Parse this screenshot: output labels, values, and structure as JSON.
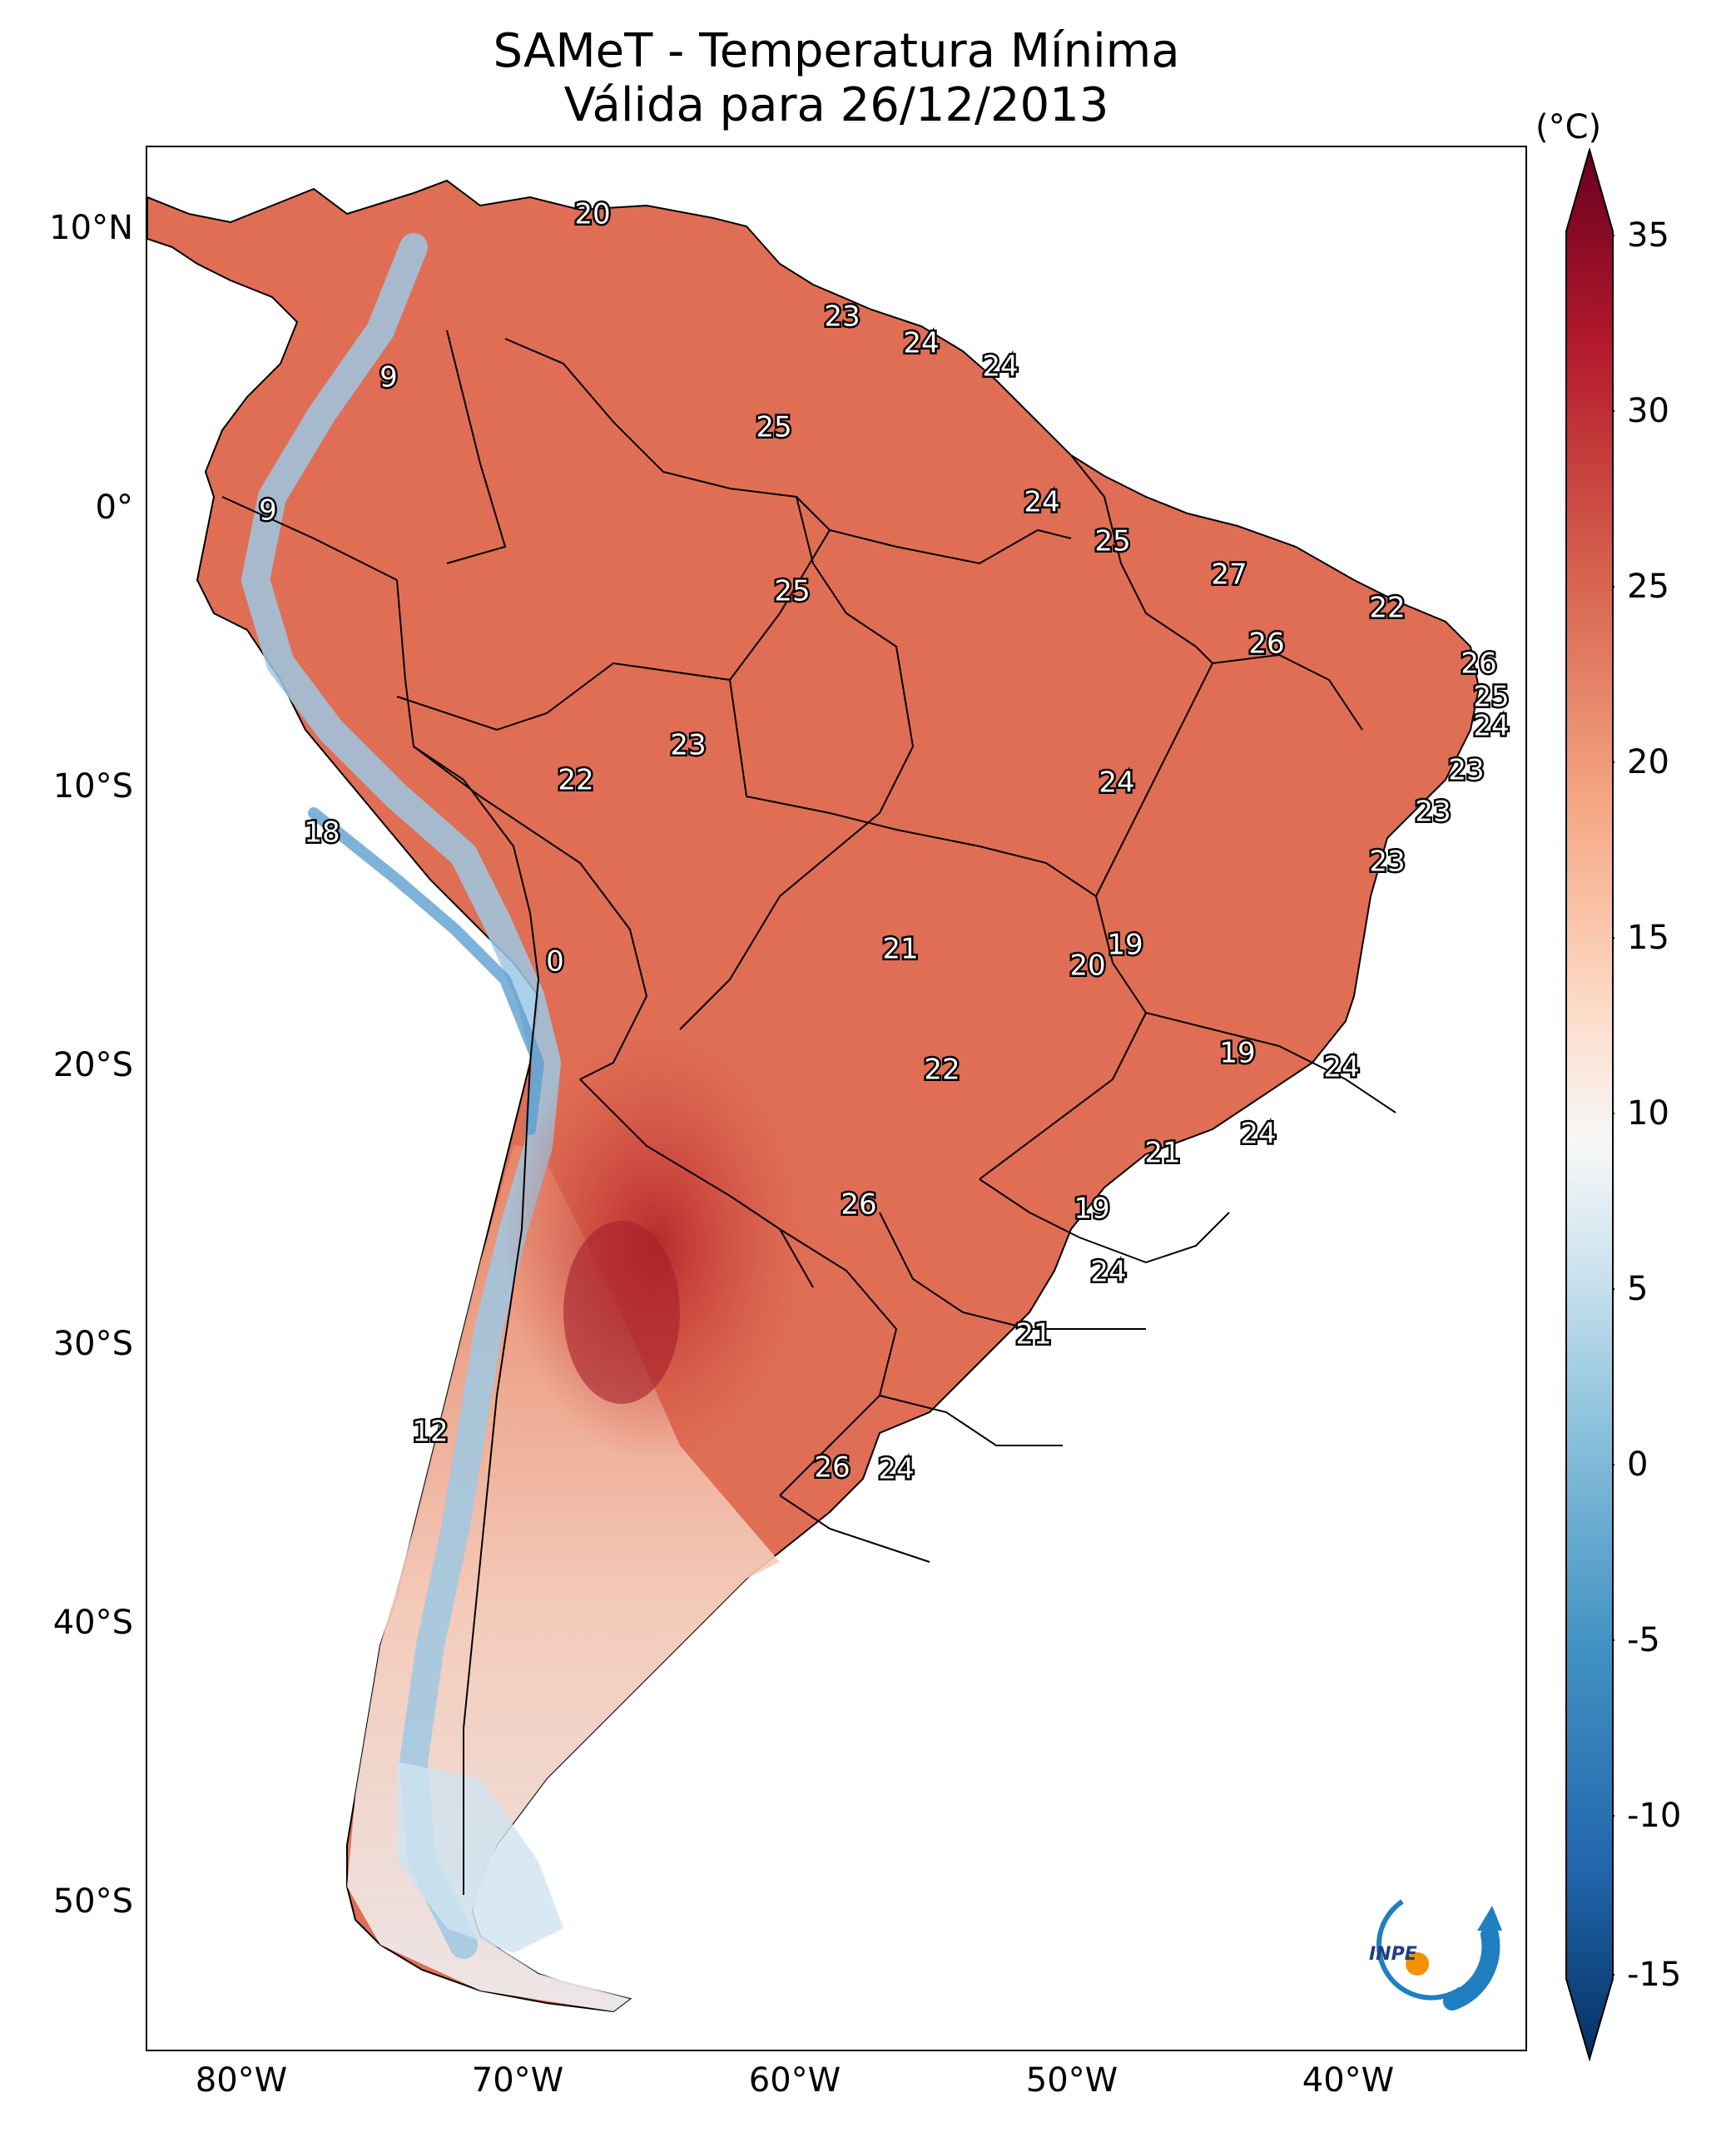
{
  "title": {
    "line1": "SAMeT - Temperatura Mínima",
    "line2": "Válida para 26/12/2013"
  },
  "axes": {
    "lat_labels": [
      "10°N",
      "0°",
      "10°S",
      "20°S",
      "30°S",
      "40°S",
      "50°S"
    ],
    "lon_labels": [
      "80°W",
      "70°W",
      "60°W",
      "50°W",
      "40°W"
    ]
  },
  "colorbar": {
    "unit": "(°C)",
    "ticks": [
      "35",
      "30",
      "25",
      "20",
      "15",
      "10",
      "5",
      "0",
      "-5",
      "-10",
      "-15"
    ],
    "colors": [
      "#67001f",
      "#b2182b",
      "#d6604d",
      "#f4a582",
      "#fddbc7",
      "#f7f7f7",
      "#d1e5f0",
      "#92c5de",
      "#4393c3",
      "#2166ac",
      "#053061"
    ]
  },
  "map_values": [
    {
      "text": "20"
    },
    {
      "text": "23"
    },
    {
      "text": "24"
    },
    {
      "text": "24"
    },
    {
      "text": "9"
    },
    {
      "text": "25"
    },
    {
      "text": "9"
    },
    {
      "text": "24"
    },
    {
      "text": "25"
    },
    {
      "text": "25"
    },
    {
      "text": "27"
    },
    {
      "text": "22"
    },
    {
      "text": "26"
    },
    {
      "text": "26"
    },
    {
      "text": "25"
    },
    {
      "text": "24"
    },
    {
      "text": "23"
    },
    {
      "text": "22"
    },
    {
      "text": "24"
    },
    {
      "text": "23"
    },
    {
      "text": "23"
    },
    {
      "text": "18"
    },
    {
      "text": "23"
    },
    {
      "text": "21"
    },
    {
      "text": "19"
    },
    {
      "text": "0"
    },
    {
      "text": "20"
    },
    {
      "text": "19"
    },
    {
      "text": "24"
    },
    {
      "text": "22"
    },
    {
      "text": "24"
    },
    {
      "text": "21"
    },
    {
      "text": "26"
    },
    {
      "text": "19"
    },
    {
      "text": "24"
    },
    {
      "text": "21"
    },
    {
      "text": "12"
    },
    {
      "text": "26"
    },
    {
      "text": "24"
    }
  ],
  "logo": {
    "text": "INPE",
    "colors": {
      "arc": "#1f7fc0",
      "dot": "#f39200"
    }
  }
}
